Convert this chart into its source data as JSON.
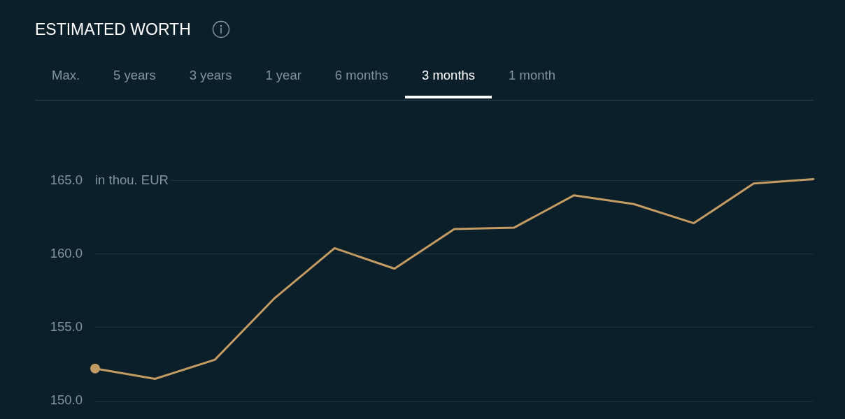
{
  "chart_data": {
    "type": "line",
    "title": "ESTIMATED WORTH",
    "ylabel": "in thou. EUR",
    "annotations": [
      "Max.",
      "5 years",
      "3 years",
      "1 year",
      "6 months",
      "3 months",
      "1 month"
    ],
    "categories": [
      null,
      null,
      null,
      null,
      null,
      null,
      null,
      null,
      null,
      null,
      null,
      null,
      null
    ],
    "series": [
      {
        "color": "#c49b63",
        "values": [
          152.2,
          151.5,
          152.8,
          157.0,
          160.4,
          159.0,
          161.7,
          161.8,
          164.0,
          163.4,
          162.1,
          164.8,
          165.1
        ]
      },
      {
        "type": "scatter",
        "color": "#c49b63",
        "marker": "circle",
        "values": [
          152.2,
          null,
          null,
          null,
          null,
          null,
          null,
          null,
          null,
          null,
          null,
          null,
          null
        ]
      }
    ],
    "ylim": [
      150,
      170.5
    ],
    "yticks": [
      {
        "value": 150,
        "label": "150.0"
      },
      {
        "value": 155,
        "label": "155.0"
      },
      {
        "value": 160,
        "label": "160.0"
      },
      {
        "value": 165,
        "label": "165.0"
      }
    ],
    "grid": "y",
    "legend": false,
    "tick_labels": "y",
    "marker": "none",
    "line_style": "solid"
  }
}
